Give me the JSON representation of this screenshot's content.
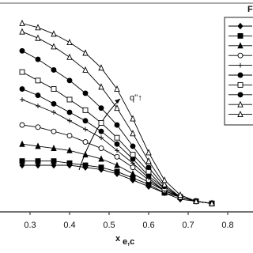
{
  "chart_data": {
    "type": "line",
    "legend_title": "F",
    "xlabel": {
      "text": "x",
      "subscript": "e,c"
    },
    "annotation": "q''↑",
    "x": [
      0.28,
      0.32,
      0.36,
      0.4,
      0.44,
      0.48,
      0.52,
      0.56,
      0.6,
      0.64,
      0.68,
      0.72,
      0.76
    ],
    "xlim": [
      0.224,
      0.864
    ],
    "ylim": [
      0,
      1
    ],
    "xticks": [
      0.3,
      0.4,
      0.5,
      0.6,
      0.7,
      0.8
    ],
    "series": [
      {
        "color": "#000000",
        "marker": "diamond",
        "values": [
          0.22,
          0.22,
          0.22,
          0.22,
          0.21,
          0.2,
          0.18,
          0.15,
          0.12,
          0.09,
          0.06,
          0.05,
          0.04
        ]
      },
      {
        "color": "#000000",
        "marker": "square",
        "values": [
          0.24,
          0.24,
          0.24,
          0.23,
          0.22,
          0.21,
          0.19,
          0.16,
          0.13,
          0.09,
          0.07,
          0.05,
          0.04
        ]
      },
      {
        "color": "#000000",
        "marker": "triangle",
        "values": [
          0.32,
          0.31,
          0.3,
          0.29,
          0.27,
          0.25,
          0.22,
          0.18,
          0.14,
          0.1,
          0.07,
          0.05,
          0.04
        ]
      },
      {
        "color": "#000000",
        "marker": "circle-open",
        "values": [
          0.41,
          0.4,
          0.38,
          0.36,
          0.33,
          0.3,
          0.26,
          0.21,
          0.15,
          0.1,
          0.07,
          0.05,
          0.04
        ]
      },
      {
        "color": "#000000",
        "marker": "plus",
        "values": [
          0.53,
          0.5,
          0.47,
          0.43,
          0.39,
          0.35,
          0.29,
          0.23,
          0.16,
          0.1,
          0.07,
          0.05,
          0.04
        ]
      },
      {
        "color": "#000000",
        "marker": "circle",
        "values": [
          0.58,
          0.55,
          0.51,
          0.47,
          0.43,
          0.38,
          0.32,
          0.25,
          0.17,
          0.11,
          0.07,
          0.05,
          0.04
        ]
      },
      {
        "color": "#000000",
        "marker": "square-open",
        "values": [
          0.66,
          0.62,
          0.58,
          0.53,
          0.48,
          0.42,
          0.35,
          0.27,
          0.19,
          0.11,
          0.07,
          0.05,
          0.04
        ]
      },
      {
        "color": "#000000",
        "marker": "circle",
        "values": [
          0.76,
          0.72,
          0.67,
          0.62,
          0.56,
          0.49,
          0.41,
          0.31,
          0.21,
          0.12,
          0.07,
          0.05,
          0.04
        ]
      },
      {
        "color": "#000000",
        "marker": "triangle-open",
        "values": [
          0.85,
          0.82,
          0.78,
          0.73,
          0.67,
          0.59,
          0.49,
          0.37,
          0.24,
          0.13,
          0.07,
          0.05,
          0.04
        ]
      },
      {
        "color": "#000000",
        "marker": "triangle-open",
        "values": [
          0.89,
          0.87,
          0.84,
          0.8,
          0.75,
          0.68,
          0.58,
          0.44,
          0.28,
          0.15,
          0.08,
          0.05,
          0.04
        ]
      }
    ]
  }
}
